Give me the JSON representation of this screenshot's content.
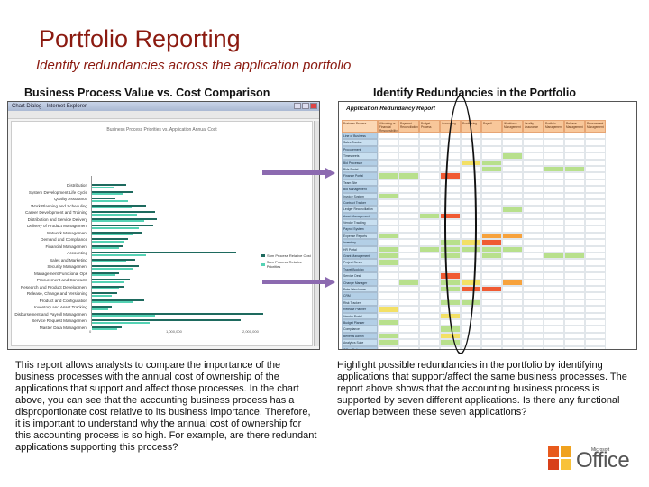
{
  "slide": {
    "title": "Portfolio Reporting",
    "subtitle": "Identify redundancies across the application portfolio"
  },
  "left_section": {
    "heading": "Business Process Value vs. Cost Comparison",
    "body": "This report allows analysts to compare the importance of the business processes with the annual cost of ownership of the applications that support and affect those processes. In the chart above, you can see that the accounting business process has a disproportionate cost relative to its business importance. Therefore, it is important to understand why the annual cost of ownership for this accounting process is so high. For example, are there redundant applications supporting this process?"
  },
  "right_section": {
    "heading": "Identify Redundancies in the Portfolio",
    "body": "Highlight possible redundancies in the portfolio by identifying applications that support/affect the same business processes. The report above shows that the accounting business process is supported by seven different applications. Is there any functional overlap between these seven applications?"
  },
  "chart_screenshot": {
    "window_title": "Chart Dialog - Internet Explorer",
    "chart_title": "Business Process Priorities vs. Application Annual Cost",
    "legend": [
      "Sum Process Relative Cost",
      "Sum Process Relative Priorities"
    ],
    "axis_ticks": [
      "0",
      "1,000,000",
      "2,000,000",
      "3,000,000"
    ],
    "categories": [
      "Distribution",
      "System Development Life Cycle",
      "Quality Assurance",
      "Work Planning and Scheduling",
      "Career Development and Training",
      "Distribution and Service Delivery",
      "Delivery of Product Management",
      "Network Management",
      "Demand and Compliance",
      "Financial Management",
      "Accounting",
      "Sales and Marketing",
      "Security Management",
      "Management Functional Ops",
      "Procurement and Contracts",
      "Research and Product Development",
      "Release, Change and Versioning",
      "Product and Configuration",
      "Inventory and Asset Tracking",
      "Disbursement and Payroll Management",
      "Service Request Management",
      "Master Data Management"
    ],
    "colors": {
      "relative_cost": "#1e6a5e",
      "relative_priority": "#55d2b4"
    }
  },
  "report_screenshot": {
    "title": "Application Redundancy Report",
    "columns": [
      "Business Process",
      "Allocating or Financial Responsibility",
      "Payment Reconciliation",
      "Budget Process",
      "Accounting",
      "Purchasing",
      "Payroll",
      "Workforce Management",
      "Quality Assurance",
      "Portfolio Management",
      "Release Management",
      "Procurement Management"
    ],
    "rows": [
      "Line of Business",
      "Sales Tracker",
      "Procurement",
      "Timesheets",
      "Bid Processor",
      "Bids Portal",
      "Finance Portal",
      "Team Site",
      "Bid Management",
      "Invoice System",
      "Contract Tracker",
      "Ledger Reconciliation",
      "Asset Management",
      "Vendor Tracking",
      "Payroll System",
      "Expense Reports",
      "Inventory",
      "HR Portal",
      "Grant Management",
      "Project Server",
      "Travel Booking",
      "Service Desk",
      "Change Manager",
      "Data Warehouse",
      "CRM",
      "Risk Tracker",
      "Release Planner",
      "Vendor Portal",
      "Budget Planner",
      "Compliance",
      "Benefits Admin",
      "Analytics Suite",
      "Office Suite"
    ],
    "colors": {
      "header": "#f8c79a",
      "row_label": "#c8dff0",
      "green": "#b8e08c",
      "yellow": "#f3e065",
      "red": "#f05a32",
      "orange": "#f7a23c"
    }
  },
  "logo": {
    "brand": "Microsoft",
    "product": "Office"
  }
}
